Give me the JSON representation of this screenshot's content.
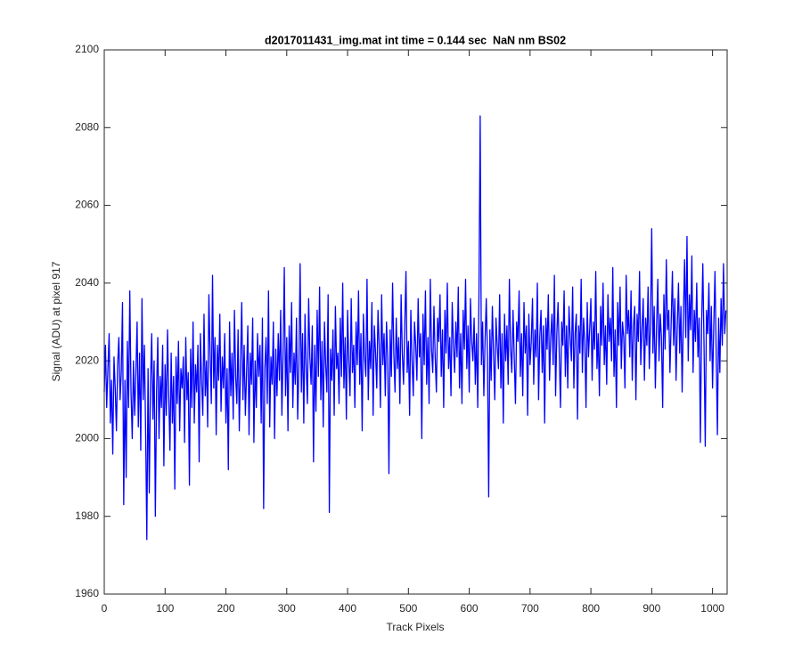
{
  "chart_data": {
    "type": "line",
    "title": "d2017011431_img.mat int time = 0.144 sec  NaN nm BS02",
    "xlabel": "Track Pixels",
    "ylabel": "Signal (ADU) at pixel 917",
    "color": "#0000ff",
    "xlim": [
      0,
      1024
    ],
    "ylim": [
      1960,
      2100
    ],
    "xticks": [
      0,
      100,
      200,
      300,
      400,
      500,
      600,
      700,
      800,
      900,
      1000
    ],
    "yticks": [
      1960,
      1980,
      2000,
      2020,
      2040,
      2060,
      2080,
      2100
    ],
    "grid": false,
    "x": [
      0,
      2,
      4,
      6,
      8,
      10,
      12,
      14,
      16,
      18,
      20,
      22,
      24,
      26,
      28,
      30,
      32,
      34,
      36,
      38,
      40,
      42,
      44,
      46,
      48,
      50,
      52,
      54,
      56,
      58,
      60,
      62,
      64,
      66,
      68,
      70,
      72,
      74,
      76,
      78,
      80,
      82,
      84,
      86,
      88,
      90,
      92,
      94,
      96,
      98,
      100,
      102,
      104,
      106,
      108,
      110,
      112,
      114,
      116,
      118,
      120,
      122,
      124,
      126,
      128,
      130,
      132,
      134,
      136,
      138,
      140,
      142,
      144,
      146,
      148,
      150,
      152,
      154,
      156,
      158,
      160,
      162,
      164,
      166,
      168,
      170,
      172,
      174,
      176,
      178,
      180,
      182,
      184,
      186,
      188,
      190,
      192,
      194,
      196,
      198,
      200,
      202,
      204,
      206,
      208,
      210,
      212,
      214,
      216,
      218,
      220,
      222,
      224,
      226,
      228,
      230,
      232,
      234,
      236,
      238,
      240,
      242,
      244,
      246,
      248,
      250,
      252,
      254,
      256,
      258,
      260,
      262,
      264,
      266,
      268,
      270,
      272,
      274,
      276,
      278,
      280,
      282,
      284,
      286,
      288,
      290,
      292,
      294,
      296,
      298,
      300,
      302,
      304,
      306,
      308,
      310,
      312,
      314,
      316,
      318,
      320,
      322,
      324,
      326,
      328,
      330,
      332,
      334,
      336,
      338,
      340,
      342,
      344,
      346,
      348,
      350,
      352,
      354,
      356,
      358,
      360,
      362,
      364,
      366,
      368,
      370,
      372,
      374,
      376,
      378,
      380,
      382,
      384,
      386,
      388,
      390,
      392,
      394,
      396,
      398,
      400,
      402,
      404,
      406,
      408,
      410,
      412,
      414,
      416,
      418,
      420,
      422,
      424,
      426,
      428,
      430,
      432,
      434,
      436,
      438,
      440,
      442,
      444,
      446,
      448,
      450,
      452,
      454,
      456,
      458,
      460,
      462,
      464,
      466,
      468,
      470,
      472,
      474,
      476,
      478,
      480,
      482,
      484,
      486,
      488,
      490,
      492,
      494,
      496,
      498,
      500,
      502,
      504,
      506,
      508,
      510,
      512,
      514,
      516,
      518,
      520,
      522,
      524,
      526,
      528,
      530,
      532,
      534,
      536,
      538,
      540,
      542,
      544,
      546,
      548,
      550,
      552,
      554,
      556,
      558,
      560,
      562,
      564,
      566,
      568,
      570,
      572,
      574,
      576,
      578,
      580,
      582,
      584,
      586,
      588,
      590,
      592,
      594,
      596,
      598,
      600,
      602,
      604,
      606,
      608,
      610,
      612,
      614,
      616,
      618,
      620,
      622,
      624,
      626,
      628,
      630,
      632,
      634,
      636,
      638,
      640,
      642,
      644,
      646,
      648,
      650,
      652,
      654,
      656,
      658,
      660,
      662,
      664,
      666,
      668,
      670,
      672,
      674,
      676,
      678,
      680,
      682,
      684,
      686,
      688,
      690,
      692,
      694,
      696,
      698,
      700,
      702,
      704,
      706,
      708,
      710,
      712,
      714,
      716,
      718,
      720,
      722,
      724,
      726,
      728,
      730,
      732,
      734,
      736,
      738,
      740,
      742,
      744,
      746,
      748,
      750,
      752,
      754,
      756,
      758,
      760,
      762,
      764,
      766,
      768,
      770,
      772,
      774,
      776,
      778,
      780,
      782,
      784,
      786,
      788,
      790,
      792,
      794,
      796,
      798,
      800,
      802,
      804,
      806,
      808,
      810,
      812,
      814,
      816,
      818,
      820,
      822,
      824,
      826,
      828,
      830,
      832,
      834,
      836,
      838,
      840,
      842,
      844,
      846,
      848,
      850,
      852,
      854,
      856,
      858,
      860,
      862,
      864,
      866,
      868,
      870,
      872,
      874,
      876,
      878,
      880,
      882,
      884,
      886,
      888,
      890,
      892,
      894,
      896,
      898,
      900,
      902,
      904,
      906,
      908,
      910,
      912,
      914,
      916,
      918,
      920,
      922,
      924,
      926,
      928,
      930,
      932,
      934,
      936,
      938,
      940,
      942,
      944,
      946,
      948,
      950,
      952,
      954,
      956,
      958,
      960,
      962,
      964,
      966,
      968,
      970,
      972,
      974,
      976,
      978,
      980,
      982,
      984,
      986,
      988,
      990,
      992,
      994,
      996,
      998,
      1000,
      1002,
      1004,
      1006,
      1008,
      1010,
      1012,
      1014,
      1016,
      1018,
      1020,
      1022
    ],
    "values": [
      2012,
      2024,
      2008,
      2018,
      2027,
      2004,
      2015,
      1996,
      2021,
      2013,
      2002,
      2019,
      2026,
      2010,
      2017,
      2035,
      1983,
      2015,
      1990,
      2025,
      2008,
      2038,
      2012,
      2000,
      2020,
      2006,
      2017,
      2030,
      2003,
      2022,
      1997,
      2036,
      2010,
      2024,
      2002,
      1974,
      2018,
      1986,
      2014,
      2027,
      2005,
      2020,
      1980,
      2012,
      2026,
      2000,
      2016,
      2008,
      2024,
      1993,
      2019,
      2006,
      2028,
      2011,
      1997,
      2022,
      2004,
      2016,
      1987,
      2021,
      2009,
      2025,
      2002,
      2018,
      2013,
      2021,
      1999,
      2026,
      2010,
      2017,
      1988,
      2023,
      2008,
      2030,
      2004,
      2019,
      2012,
      2024,
      1994,
      2027,
      2015,
      2006,
      2032,
      2011,
      2020,
      2003,
      2037,
      2022,
      2009,
      2042,
      2013,
      2026,
      2001,
      2024,
      2015,
      2032,
      2007,
      2021,
      2013,
      2027,
      2004,
      2018,
      1992,
      2030,
      2011,
      2022,
      2005,
      2033,
      2016,
      2009,
      2028,
      2002,
      2019,
      2035,
      2010,
      2024,
      2006,
      2017,
      2029,
      2001,
      2022,
      2014,
      2031,
      1999,
      2020,
      2008,
      2027,
      2016,
      2024,
      2004,
      2031,
      1982,
      2018,
      2026,
      2009,
      2038,
      2003,
      2021,
      2014,
      2030,
      2000,
      2023,
      2011,
      2027,
      2015,
      2033,
      2006,
      2022,
      2044,
      2011,
      2026,
      2002,
      2029,
      2017,
      2035,
      2008,
      2022,
      2014,
      2031,
      2005,
      2019,
      2045,
      2012,
      2027,
      2004,
      2032,
      2018,
      2009,
      2036,
      2021,
      2014,
      2029,
      1994,
      2024,
      2007,
      2033,
      2016,
      2039,
      2010,
      2025,
      2003,
      2030,
      2019,
      2012,
      2037,
      1981,
      2023,
      2015,
      2028,
      2006,
      2034,
      2018,
      2022,
      2009,
      2031,
      2016,
      2040,
      2013,
      2026,
      2005,
      2033,
      2020,
      2011,
      2036,
      2017,
      2024,
      2008,
      2030,
      2019,
      2038,
      2014,
      2027,
      2002,
      2032,
      2021,
      2016,
      2041,
      2010,
      2025,
      2018,
      2035,
      2006,
      2029,
      2022,
      2013,
      2033,
      2024,
      2008,
      2037,
      2019,
      2027,
      2011,
      2030,
      2021,
      1991,
      2028,
      2016,
      2040,
      2022,
      2012,
      2031,
      2018,
      2026,
      2009,
      2037,
      2022,
      2014,
      2029,
      2043,
      2017,
      2025,
      2006,
      2033,
      2020,
      2011,
      2030,
      2024,
      2015,
      2036,
      2021,
      2027,
      2000,
      2032,
      2019,
      2038,
      2014,
      2026,
      2009,
      2041,
      2023,
      2017,
      2034,
      2021,
      2012,
      2031,
      2025,
      2037,
      2016,
      2028,
      2008,
      2033,
      2022,
      2040,
      2018,
      2026,
      2011,
      2035,
      2024,
      2017,
      2030,
      2021,
      2039,
      2013,
      2027,
      2009,
      2033,
      2023,
      2041,
      2018,
      2029,
      2012,
      2036,
      2025,
      2020,
      2031,
      2014,
      2027,
      2008,
      2037,
      2083,
      2019,
      2030,
      2011,
      2025,
      2036,
      2021,
      1985,
      2028,
      2015,
      2034,
      2022,
      2010,
      2031,
      2024,
      2018,
      2037,
      2013,
      2027,
      2004,
      2032,
      2020,
      2029,
      2014,
      2041,
      2023,
      2017,
      2033,
      2021,
      2009,
      2030,
      2025,
      2038,
      2016,
      2027,
      2011,
      2035,
      2022,
      2029,
      2006,
      2032,
      2019,
      2025,
      2036,
      2014,
      2028,
      2021,
      2040,
      2010,
      2026,
      2033,
      2017,
      2029,
      2004,
      2031,
      2023,
      2037,
      2015,
      2026,
      2032,
      2019,
      2042,
      2011,
      2027,
      2035,
      2022,
      2008,
      2030,
      2024,
      2038,
      2016,
      2029,
      2013,
      2034,
      2026,
      2020,
      2039,
      2013,
      2027,
      2032,
      2005,
      2029,
      2022,
      2041,
      2017,
      2031,
      2025,
      2008,
      2035,
      2021,
      2028,
      2036,
      2015,
      2030,
      2023,
      2043,
      2018,
      2027,
      2011,
      2034,
      2024,
      2040,
      2019,
      2029,
      2014,
      2037,
      2025,
      2031,
      2020,
      2044,
      2016,
      2028,
      2008,
      2035,
      2024,
      2039,
      2018,
      2030,
      2026,
      2013,
      2042,
      2027,
      2033,
      2021,
      2038,
      2015,
      2029,
      2034,
      2010,
      2032,
      2025,
      2043,
      2019,
      2028,
      2036,
      2015,
      2031,
      2024,
      2039,
      2018,
      2030,
      2054,
      2022,
      2034,
      2013,
      2029,
      2041,
      2020,
      2032,
      2026,
      2008,
      2037,
      2023,
      2046,
      2028,
      2033,
      2017,
      2030,
      2043,
      2024,
      2036,
      2015,
      2029,
      2040,
      2022,
      2034,
      2012,
      2031,
      2046,
      2026,
      2052,
      2020,
      2037,
      2028,
      2047,
      2017,
      2033,
      2025,
      2040,
      2021,
      2031,
      1999,
      2029,
      2045,
      2024,
      1998,
      2033,
      2027,
      2040,
      2020,
      2034,
      2013,
      2029,
      2043,
      2022,
      2001,
      2031,
      2017,
      2036,
      2024,
      2045,
      2027,
      2033
    ]
  }
}
